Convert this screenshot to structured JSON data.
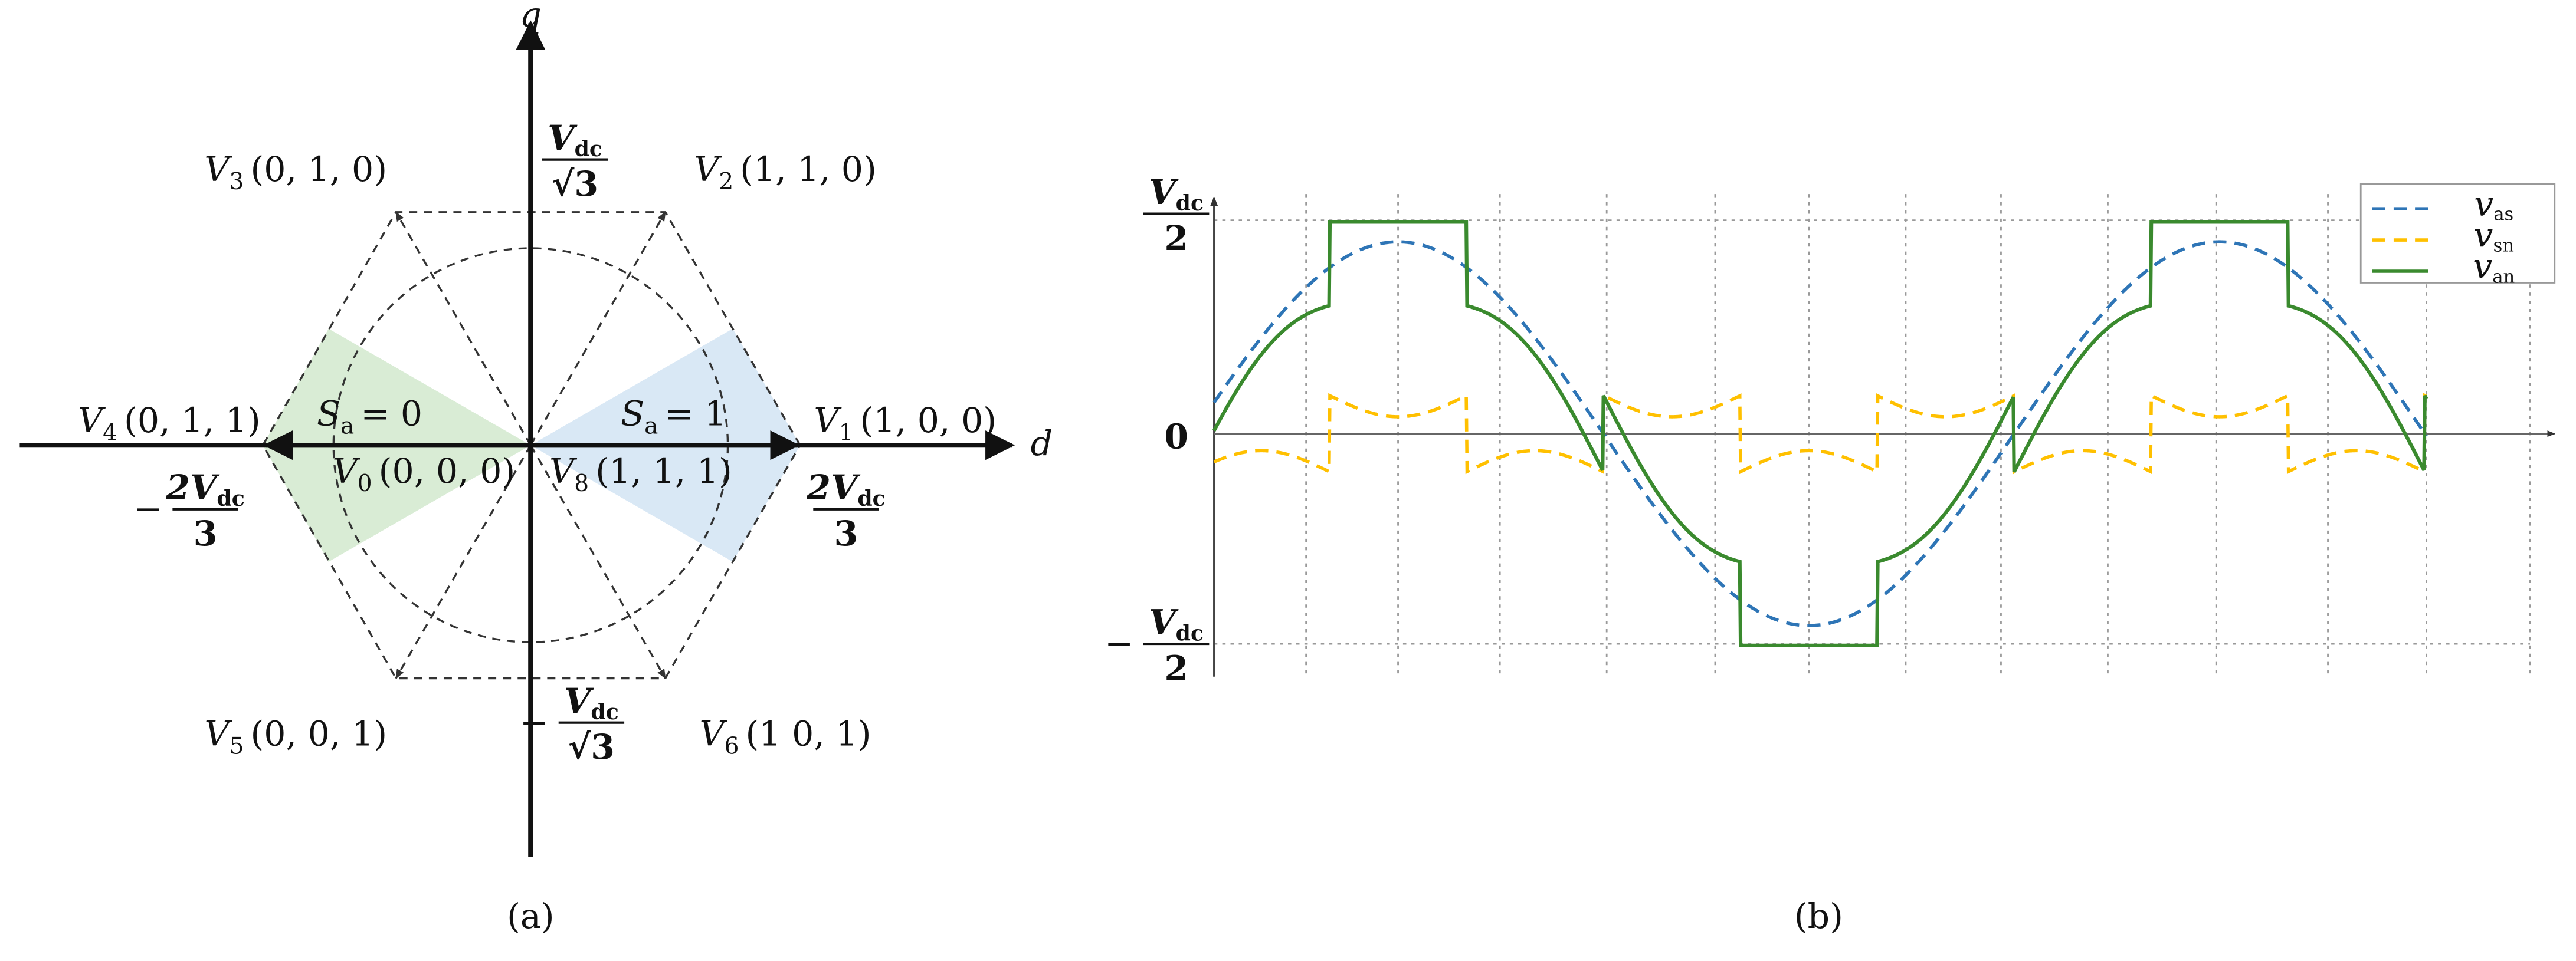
{
  "panel_a": {
    "caption": "(a)",
    "axis_q": "q",
    "axis_d": "d",
    "vectors": [
      {
        "symbol": "V",
        "sub": "1",
        "args": "(1, 0, 0)"
      },
      {
        "symbol": "V",
        "sub": "2",
        "args": "(1, 1, 0)"
      },
      {
        "symbol": "V",
        "sub": "3",
        "args": "(0, 1, 0)"
      },
      {
        "symbol": "V",
        "sub": "4",
        "args": "(0, 1, 1)"
      },
      {
        "symbol": "V",
        "sub": "5",
        "args": "(0, 0, 1)"
      },
      {
        "symbol": "V",
        "sub": "6",
        "args": "(1 0, 1)"
      },
      {
        "symbol": "V",
        "sub": "0",
        "args": "(0, 0, 0)"
      },
      {
        "symbol": "V",
        "sub": "8",
        "args": "(1, 1, 1)"
      }
    ],
    "sectors": [
      {
        "symbol": "S",
        "sub": "a",
        "relation": "= 0"
      },
      {
        "symbol": "S",
        "sub": "a",
        "relation": "= 1"
      }
    ],
    "magnitudes": [
      {
        "num": "V",
        "num_sub": "dc",
        "den": "√3"
      },
      {
        "sign": "−",
        "num": "V",
        "num_sub": "dc",
        "den": "√3"
      },
      {
        "sign": "−",
        "num": "2V",
        "num_sub": "dc",
        "den": "3"
      },
      {
        "num": "2V",
        "num_sub": "dc",
        "den": "3"
      }
    ]
  },
  "panel_b": {
    "caption": "(b)",
    "y_labels": [
      {
        "num": "V",
        "num_sub": "dc",
        "den": "2"
      },
      "0",
      {
        "sign": "−",
        "num": "V",
        "num_sub": "dc",
        "den": "2"
      }
    ],
    "legend": [
      {
        "symbol": "v",
        "sub": "as"
      },
      {
        "symbol": "v",
        "sub": "sn"
      },
      {
        "symbol": "v",
        "sub": "an"
      }
    ]
  }
}
